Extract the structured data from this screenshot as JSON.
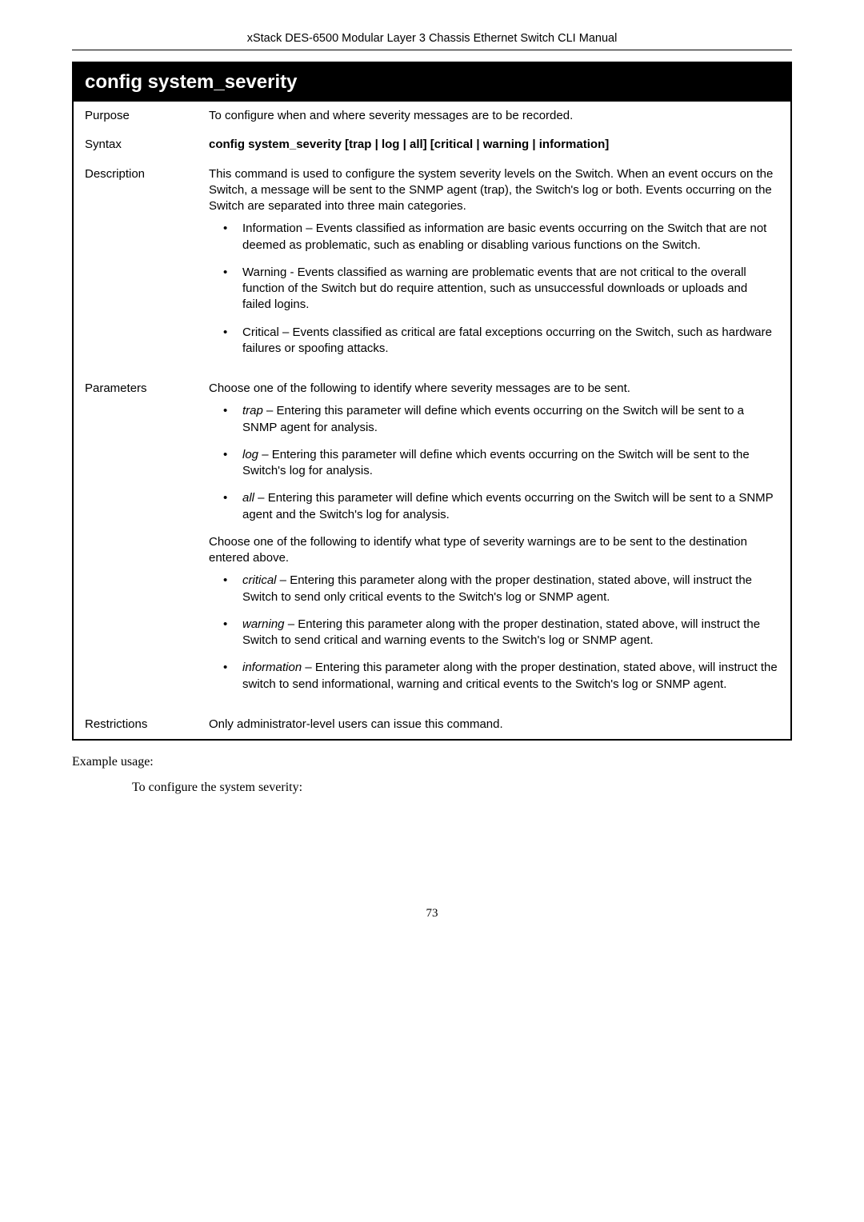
{
  "header": "xStack DES-6500 Modular Layer 3 Chassis Ethernet Switch CLI Manual",
  "table": {
    "title": "config system_severity",
    "rows": {
      "purpose": {
        "label": "Purpose",
        "text": "To configure when and where severity messages are to be recorded."
      },
      "syntax": {
        "label": "Syntax",
        "text": "config system_severity [trap | log | all] [critical | warning | information]"
      },
      "description": {
        "label": "Description",
        "text": "This command is used to configure the system severity levels on the Switch. When an event occurs on the Switch, a message will be sent to the SNMP agent (trap), the Switch's log or both. Events occurring on the Switch are separated into three main categories.",
        "bullets": [
          "Information – Events classified as information are basic events occurring on the Switch that are not deemed as problematic, such as enabling or disabling various functions on the Switch.",
          "Warning - Events classified as warning are problematic events that are not critical to the overall function of the Switch but do require attention, such as unsuccessful downloads or uploads and failed logins.",
          "Critical – Events classified as critical are fatal exceptions occurring on the Switch, such as hardware failures or spoofing attacks."
        ]
      },
      "parameters": {
        "label": "Parameters",
        "text1": "Choose one of the following to identify where severity messages are to be sent.",
        "bullets1": [
          {
            "term": "trap",
            "rest": " – Entering this parameter will define which events occurring on the Switch will be sent to a SNMP agent for analysis."
          },
          {
            "term": "log",
            "rest": " – Entering this parameter will define which events occurring on the Switch will be sent to the Switch's log for analysis."
          },
          {
            "term": "all",
            "rest": " – Entering this parameter will define which events occurring on the Switch will be sent to a SNMP agent and the Switch's log for analysis."
          }
        ],
        "text2": "Choose one of the following to identify what type of severity warnings are to be sent to the destination entered above.",
        "bullets2": [
          {
            "term": "critical",
            "rest": " – Entering this parameter along with the proper destination, stated above, will instruct the Switch to send only critical events to the Switch's log or SNMP agent."
          },
          {
            "term": "warning",
            "rest": " – Entering this parameter along with the proper destination, stated above, will instruct the Switch to send critical and warning events to the Switch's log or SNMP agent."
          },
          {
            "term": "information",
            "rest": " – Entering this parameter along with the proper destination, stated above, will instruct the switch to send informational, warning and critical events to the Switch's log or SNMP agent."
          }
        ]
      },
      "restrictions": {
        "label": "Restrictions",
        "text": "Only administrator-level users can issue this command."
      }
    }
  },
  "example": {
    "line1": "Example usage:",
    "line2": "To configure the system severity:"
  },
  "pageNumber": "73"
}
